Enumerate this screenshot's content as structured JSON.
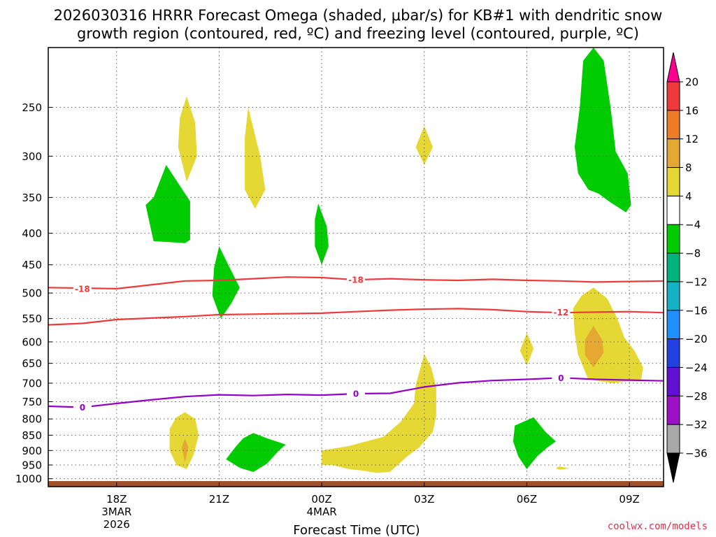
{
  "chart_data": {
    "type": "contour",
    "title_line1": "2026030316 HRRR Forecast Omega (shaded, μbar/s) for KB#1 with dendritic snow",
    "title_line2": "growth region (contoured, red, ºC) and freezing level (contoured, purple, ºC)",
    "xlabel": "Forecast Time (UTC)",
    "credit": "coolwx.com/models",
    "x_ticks": [
      {
        "hour": 2,
        "lines": [
          "18Z",
          "3MAR",
          "2026"
        ]
      },
      {
        "hour": 5,
        "lines": [
          "21Z"
        ]
      },
      {
        "hour": 8,
        "lines": [
          "00Z",
          "4MAR"
        ]
      },
      {
        "hour": 11,
        "lines": [
          "03Z"
        ]
      },
      {
        "hour": 14,
        "lines": [
          "06Z"
        ]
      },
      {
        "hour": 17,
        "lines": [
          "09Z"
        ]
      }
    ],
    "xlim": [
      -0.0,
      18.0
    ],
    "y_ticks": [
      250,
      300,
      350,
      400,
      450,
      500,
      550,
      600,
      650,
      700,
      750,
      800,
      850,
      900,
      950,
      1000
    ],
    "ylim_hPa": [
      1030,
      200
    ],
    "colorbar": {
      "labels": [
        "20",
        "16",
        "12",
        "8",
        "4",
        "−4",
        "−8",
        "−12",
        "−16",
        "−20",
        "−24",
        "−28",
        "−32",
        "−36"
      ],
      "colors": [
        "#ff0090",
        "#ee3a3a",
        "#ee7b25",
        "#e5a933",
        "#e5d834",
        "#ffffff",
        "#00cc00",
        "#00b37a",
        "#13b2c4",
        "#1e90ff",
        "#2340e0",
        "#6410d0",
        "#9c10c8",
        "#a8a8a8",
        "#000000"
      ]
    },
    "series": [
      {
        "name": "-18",
        "color": "#ee3a3a",
        "points": [
          [
            0,
            490
          ],
          [
            2,
            492
          ],
          [
            3,
            485
          ],
          [
            4,
            478
          ],
          [
            5,
            477
          ],
          [
            6,
            474
          ],
          [
            7,
            471
          ],
          [
            8,
            472
          ],
          [
            9,
            476
          ],
          [
            10,
            474
          ],
          [
            11,
            476
          ],
          [
            12,
            477
          ],
          [
            13,
            475
          ],
          [
            14,
            477
          ],
          [
            15,
            478
          ],
          [
            16,
            480
          ],
          [
            17,
            479
          ],
          [
            18,
            478
          ]
        ],
        "labels": [
          [
            1,
            492
          ],
          [
            9,
            476
          ]
        ]
      },
      {
        "name": "-12",
        "color": "#ee3a3a",
        "points": [
          [
            0,
            563
          ],
          [
            1,
            560
          ],
          [
            2,
            552
          ],
          [
            3,
            549
          ],
          [
            4,
            546
          ],
          [
            5,
            542
          ],
          [
            6,
            541
          ],
          [
            7,
            540
          ],
          [
            8,
            539
          ],
          [
            9,
            536
          ],
          [
            10,
            533
          ],
          [
            11,
            531
          ],
          [
            12,
            530
          ],
          [
            13,
            532
          ],
          [
            14,
            536
          ],
          [
            15,
            538
          ],
          [
            16,
            537
          ],
          [
            17,
            536
          ],
          [
            18,
            538
          ]
        ],
        "labels": [
          [
            15,
            537
          ]
        ]
      },
      {
        "name": "0",
        "color": "#9400c8",
        "points": [
          [
            0,
            763
          ],
          [
            1,
            766
          ],
          [
            2,
            755
          ],
          [
            3,
            745
          ],
          [
            4,
            736
          ],
          [
            5,
            731
          ],
          [
            6,
            733
          ],
          [
            7,
            730
          ],
          [
            8,
            732
          ],
          [
            9,
            728
          ],
          [
            10,
            727
          ],
          [
            11,
            710
          ],
          [
            12,
            699
          ],
          [
            13,
            693
          ],
          [
            14,
            690
          ],
          [
            15,
            686
          ],
          [
            16,
            690
          ],
          [
            17,
            692
          ],
          [
            18,
            694
          ]
        ],
        "labels": [
          [
            1,
            766
          ],
          [
            9,
            728
          ],
          [
            15,
            686
          ]
        ]
      }
    ],
    "shaded_regions": [
      {
        "value": "-8",
        "color": "#00cc00",
        "polygon": [
          [
            3.08,
            350
          ],
          [
            3.45,
            310
          ],
          [
            3.85,
            335
          ],
          [
            4.15,
            355
          ],
          [
            4.15,
            410
          ],
          [
            4.0,
            415
          ],
          [
            3.08,
            412
          ],
          [
            2.85,
            360
          ]
        ]
      },
      {
        "value": "4",
        "color": "#e5d834",
        "polygon": [
          [
            4.05,
            240
          ],
          [
            4.3,
            265
          ],
          [
            4.35,
            300
          ],
          [
            4.05,
            330
          ],
          [
            3.8,
            290
          ],
          [
            3.85,
            260
          ]
        ]
      },
      {
        "value": "4",
        "color": "#e5d834",
        "polygon": [
          [
            5.85,
            250
          ],
          [
            6.2,
            300
          ],
          [
            6.35,
            340
          ],
          [
            6.05,
            365
          ],
          [
            5.75,
            340
          ],
          [
            5.75,
            280
          ]
        ]
      },
      {
        "value": "-8",
        "color": "#00cc00",
        "polygon": [
          [
            7.9,
            358
          ],
          [
            8.15,
            390
          ],
          [
            8.2,
            420
          ],
          [
            8.0,
            450
          ],
          [
            7.8,
            420
          ],
          [
            7.8,
            380
          ]
        ]
      },
      {
        "value": "-8",
        "color": "#00cc00",
        "polygon": [
          [
            5.0,
            420
          ],
          [
            5.35,
            460
          ],
          [
            5.6,
            490
          ],
          [
            5.35,
            520
          ],
          [
            5.05,
            550
          ],
          [
            4.8,
            505
          ],
          [
            4.85,
            455
          ]
        ]
      },
      {
        "value": "4",
        "color": "#e5d834",
        "polygon": [
          [
            11.0,
            268
          ],
          [
            11.25,
            290
          ],
          [
            11.0,
            310
          ],
          [
            10.75,
            290
          ]
        ]
      },
      {
        "value": "-8",
        "color": "#00cc00",
        "polygon": [
          [
            15.95,
            200
          ],
          [
            16.25,
            210
          ],
          [
            16.45,
            250
          ],
          [
            16.6,
            295
          ],
          [
            16.95,
            320
          ],
          [
            17.05,
            360
          ],
          [
            16.9,
            370
          ],
          [
            16.4,
            355
          ],
          [
            16.1,
            345
          ],
          [
            15.8,
            340
          ],
          [
            15.5,
            320
          ],
          [
            15.4,
            290
          ],
          [
            15.55,
            250
          ],
          [
            15.65,
            210
          ]
        ]
      },
      {
        "value": "4",
        "color": "#e5d834",
        "polygon": [
          [
            15.95,
            490
          ],
          [
            16.35,
            510
          ],
          [
            16.65,
            550
          ],
          [
            16.85,
            590
          ],
          [
            17.15,
            620
          ],
          [
            17.4,
            660
          ],
          [
            17.35,
            690
          ],
          [
            16.5,
            700
          ],
          [
            15.8,
            690
          ],
          [
            15.5,
            630
          ],
          [
            15.4,
            580
          ],
          [
            15.35,
            530
          ],
          [
            15.6,
            505
          ]
        ]
      },
      {
        "value": "8",
        "color": "#e5a933",
        "polygon": [
          [
            15.95,
            565
          ],
          [
            16.2,
            595
          ],
          [
            16.25,
            625
          ],
          [
            15.95,
            660
          ],
          [
            15.7,
            630
          ],
          [
            15.7,
            595
          ]
        ]
      },
      {
        "value": "4",
        "color": "#e5d834",
        "polygon": [
          [
            14.0,
            580
          ],
          [
            14.2,
            615
          ],
          [
            14.0,
            655
          ],
          [
            13.8,
            620
          ]
        ]
      },
      {
        "value": "4",
        "color": "#e5d834",
        "polygon": [
          [
            11.0,
            628
          ],
          [
            11.2,
            660
          ],
          [
            11.35,
            710
          ],
          [
            11.35,
            790
          ],
          [
            11.25,
            840
          ],
          [
            10.85,
            890
          ],
          [
            10.5,
            920
          ],
          [
            10.0,
            975
          ],
          [
            9.6,
            978
          ],
          [
            9.2,
            970
          ],
          [
            8.8,
            965
          ],
          [
            8.3,
            950
          ],
          [
            8.0,
            950
          ],
          [
            8.0,
            900
          ],
          [
            8.8,
            885
          ],
          [
            9.8,
            855
          ],
          [
            10.3,
            810
          ],
          [
            10.7,
            755
          ],
          [
            10.75,
            705
          ]
        ]
      },
      {
        "value": "4",
        "color": "#e5d834",
        "polygon": [
          [
            4.0,
            780
          ],
          [
            4.3,
            800
          ],
          [
            4.4,
            850
          ],
          [
            4.25,
            915
          ],
          [
            4.05,
            965
          ],
          [
            3.75,
            950
          ],
          [
            3.55,
            900
          ],
          [
            3.55,
            830
          ],
          [
            3.75,
            795
          ]
        ]
      },
      {
        "value": "8",
        "color": "#e5a933",
        "polygon": [
          [
            4.0,
            860
          ],
          [
            4.1,
            890
          ],
          [
            4.0,
            940
          ],
          [
            3.9,
            890
          ]
        ]
      },
      {
        "value": "-8",
        "color": "#00cc00",
        "polygon": [
          [
            6.0,
            843
          ],
          [
            6.4,
            860
          ],
          [
            6.95,
            880
          ],
          [
            6.75,
            900
          ],
          [
            6.4,
            945
          ],
          [
            6.0,
            975
          ],
          [
            5.6,
            960
          ],
          [
            5.2,
            930
          ],
          [
            5.5,
            885
          ],
          [
            5.7,
            860
          ]
        ]
      },
      {
        "value": "-8",
        "color": "#00cc00",
        "polygon": [
          [
            14.2,
            795
          ],
          [
            14.55,
            840
          ],
          [
            14.85,
            870
          ],
          [
            14.6,
            890
          ],
          [
            14.3,
            920
          ],
          [
            14.0,
            965
          ],
          [
            13.75,
            920
          ],
          [
            13.6,
            870
          ],
          [
            13.65,
            820
          ]
        ]
      },
      {
        "value": "4",
        "color": "#e5d834",
        "polygon": [
          [
            14.95,
            955
          ],
          [
            15.25,
            962
          ],
          [
            14.95,
            967
          ],
          [
            14.85,
            962
          ]
        ]
      }
    ],
    "terrain_color": "#a0522d"
  }
}
